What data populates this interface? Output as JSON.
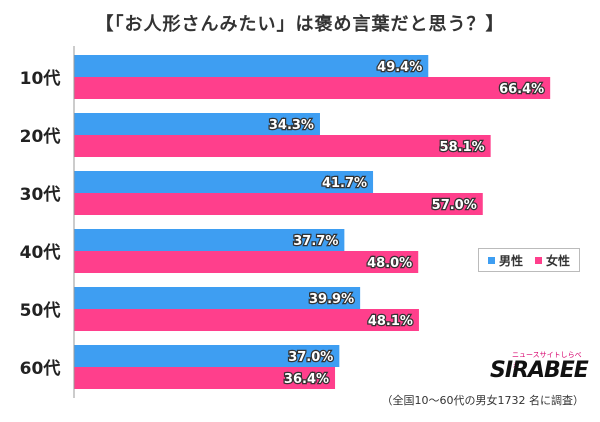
{
  "title": "【「お人形さんみたい」は褒め言葉だと思う？】",
  "footnote": "（全国10～60代の男女1732 名に調査）",
  "logo": {
    "sub": "ニュースサイトしらべぇ",
    "main": "SIRABEE"
  },
  "colors": {
    "male": "#3e9ef2",
    "female": "#ff3f8c",
    "axis": "#999999",
    "label_fill": "#333333"
  },
  "legend": {
    "male": "男性",
    "female": "女性"
  },
  "chart_data": {
    "type": "bar",
    "orientation": "horizontal",
    "title": "【「お人形さんみたい」は褒め言葉だと思う？】",
    "categories": [
      "10代",
      "20代",
      "30代",
      "40代",
      "50代",
      "60代"
    ],
    "series": [
      {
        "name": "男性",
        "values": [
          49.4,
          34.3,
          41.7,
          37.7,
          39.9,
          37.0
        ]
      },
      {
        "name": "女性",
        "values": [
          66.4,
          58.1,
          57.0,
          48.0,
          48.1,
          36.4
        ]
      }
    ],
    "value_labels": [
      [
        "49.4%",
        "34.3%",
        "41.7%",
        "37.7%",
        "39.9%",
        "37.0%"
      ],
      [
        "66.4%",
        "58.1%",
        "57.0%",
        "48.0%",
        "48.1%",
        "36.4%"
      ]
    ],
    "xlim": [
      0,
      70
    ],
    "legend_position": "right"
  }
}
